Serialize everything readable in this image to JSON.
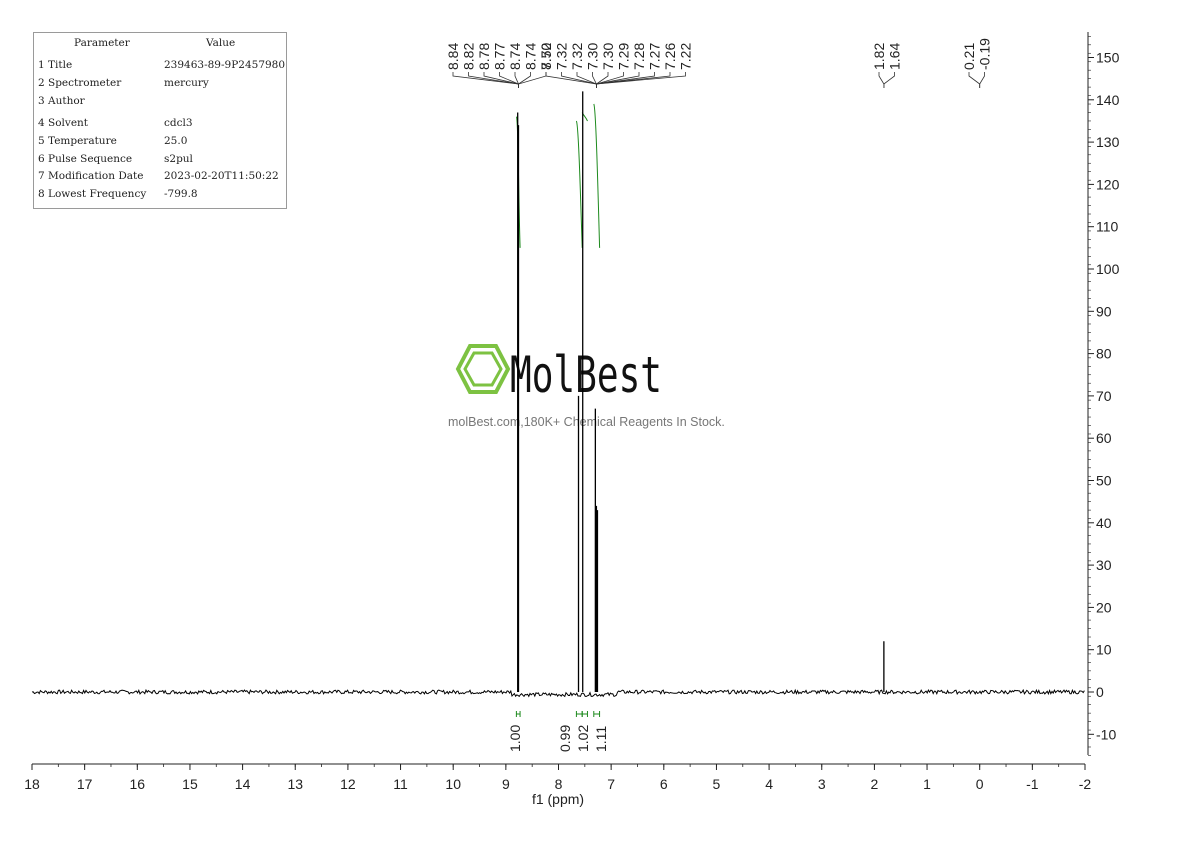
{
  "parameters": {
    "header": {
      "name": "Parameter",
      "value": "Value"
    },
    "rows": [
      {
        "label": "1 Title",
        "value": "239463-89-9P2457980"
      },
      {
        "label": "2 Spectrometer",
        "value": "mercury"
      },
      {
        "label": "3 Author",
        "value": ""
      },
      {
        "label": "4 Solvent",
        "value": "cdcl3"
      },
      {
        "label": "5 Temperature",
        "value": "25.0"
      },
      {
        "label": "6 Pulse Sequence",
        "value": "s2pul"
      },
      {
        "label": "7 Modification Date",
        "value": "2023-02-20T11:50:22"
      },
      {
        "label": "8 Lowest Frequency",
        "value": "-799.8"
      }
    ]
  },
  "watermark": {
    "brand": "MolBest",
    "tagline": "molBest.com,180K+ Chemical Reagents In Stock.",
    "brand_color": "#7dc242"
  },
  "chart_data": {
    "type": "line",
    "xlabel": "f1 (ppm)",
    "ylabel": "",
    "title": "",
    "xlim": [
      18,
      -2
    ],
    "ylim": [
      -15,
      155
    ],
    "x_ticks": [
      18,
      17,
      16,
      15,
      14,
      13,
      12,
      11,
      10,
      9,
      8,
      7,
      6,
      5,
      4,
      3,
      2,
      1,
      0,
      -1,
      -2
    ],
    "y_ticks": [
      150,
      140,
      130,
      120,
      110,
      100,
      90,
      80,
      70,
      60,
      50,
      40,
      30,
      20,
      10,
      0,
      -10
    ],
    "baseline": 0,
    "peaks": [
      {
        "ppm": 8.775,
        "height": 137
      },
      {
        "ppm": 8.76,
        "height": 134
      },
      {
        "ppm": 7.62,
        "height": 70
      },
      {
        "ppm": 7.54,
        "height": 142
      },
      {
        "ppm": 7.3,
        "height": 67
      },
      {
        "ppm": 7.28,
        "height": 44
      },
      {
        "ppm": 7.26,
        "height": 43
      },
      {
        "ppm": 1.82,
        "height": 12
      }
    ],
    "peak_labels": {
      "groups": [
        {
          "labels": [
            "8.84",
            "8.82",
            "8.78",
            "8.77",
            "8.74",
            "8.74",
            "8.72"
          ],
          "target": 8.76
        },
        {
          "labels": [
            "7.50",
            "7.32",
            "7.32",
            "7.30",
            "7.30",
            "7.29",
            "7.28",
            "7.27",
            "7.26",
            "7.22"
          ],
          "target": 7.28
        },
        {
          "labels": [
            "1.82",
            "1.64"
          ],
          "target": 1.82
        },
        {
          "labels": [
            "0.21",
            "-0.19"
          ],
          "target": 0.0
        }
      ]
    },
    "integrals": [
      {
        "from": 8.8,
        "to": 8.73,
        "value": "1.00",
        "curve_start": 105,
        "curve_end": 136
      },
      {
        "from": 7.66,
        "to": 7.55,
        "value": "0.99",
        "curve_start": 105,
        "curve_end": 135
      },
      {
        "from": 7.55,
        "to": 7.45,
        "value": "1.02",
        "curve_start": 135,
        "curve_end": 137
      },
      {
        "from": 7.33,
        "to": 7.22,
        "value": "1.11",
        "curve_start": 105,
        "curve_end": 139
      }
    ],
    "colors": {
      "spectrum": "#000000",
      "integral": "#1d8a1d",
      "axis": "#222222"
    }
  }
}
